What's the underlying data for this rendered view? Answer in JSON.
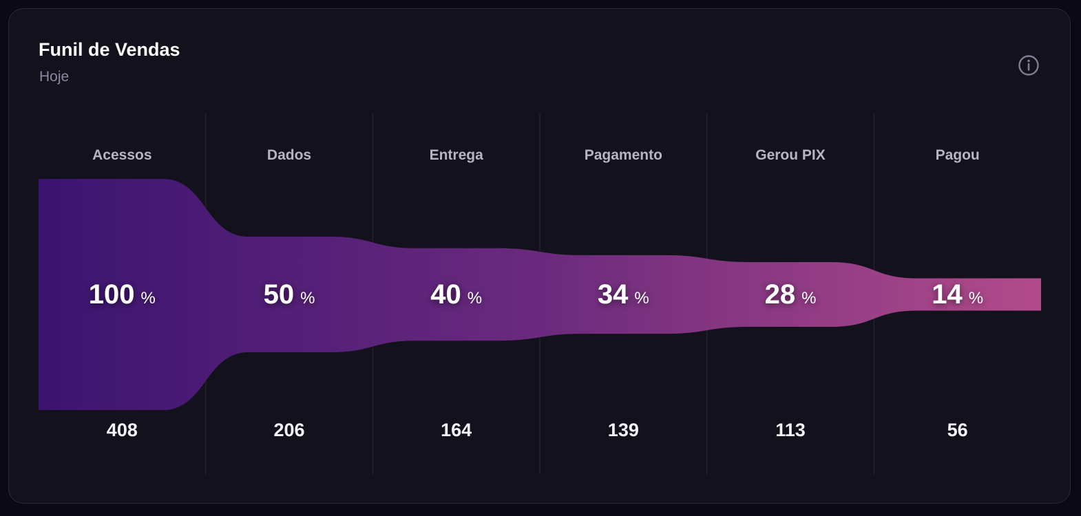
{
  "card": {
    "title": "Funil de Vendas",
    "subtitle": "Hoje",
    "info_icon": "info-circle-icon"
  },
  "colors": {
    "background": "#0b0a14",
    "card": "#13121c",
    "funnel_start": "#3b1470",
    "funnel_end": "#b24b8a"
  },
  "chart_data": {
    "type": "funnel",
    "percent_unit": "%",
    "stages": [
      {
        "label": "Acessos",
        "percent": 100,
        "count": 408
      },
      {
        "label": "Dados",
        "percent": 50,
        "count": 206
      },
      {
        "label": "Entrega",
        "percent": 40,
        "count": 164
      },
      {
        "label": "Pagamento",
        "percent": 34,
        "count": 139
      },
      {
        "label": "Gerou PIX",
        "percent": 28,
        "count": 113
      },
      {
        "label": "Pagou",
        "percent": 14,
        "count": 56
      }
    ]
  }
}
